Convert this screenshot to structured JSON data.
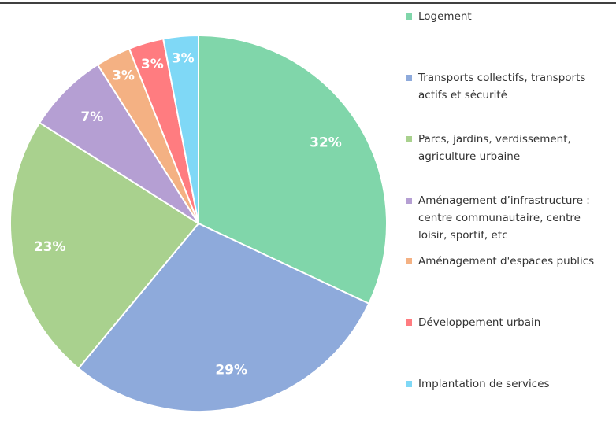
{
  "chart_data": {
    "type": "pie",
    "categories": [
      "Logement",
      "Transports collectifs, transports actifs et sécurité",
      "Parcs, jardins, verdissement, agriculture urbaine",
      "Aménagement d’infrastructure : centre communautaire, centre loisir, sportif, etc",
      "Aménagement d'espaces publics",
      "Développement urbain",
      "Implantation de services"
    ],
    "values": [
      32,
      29,
      23,
      7,
      3,
      3,
      3
    ],
    "value_labels": [
      "32%",
      "29%",
      "23%",
      "7%",
      "3%",
      "3%",
      "3%"
    ],
    "colors": [
      "#80d6aa",
      "#8eaadb",
      "#a9d18e",
      "#b59fd3",
      "#f4b183",
      "#ff7c80",
      "#7fd8f6"
    ],
    "legend": "right"
  }
}
